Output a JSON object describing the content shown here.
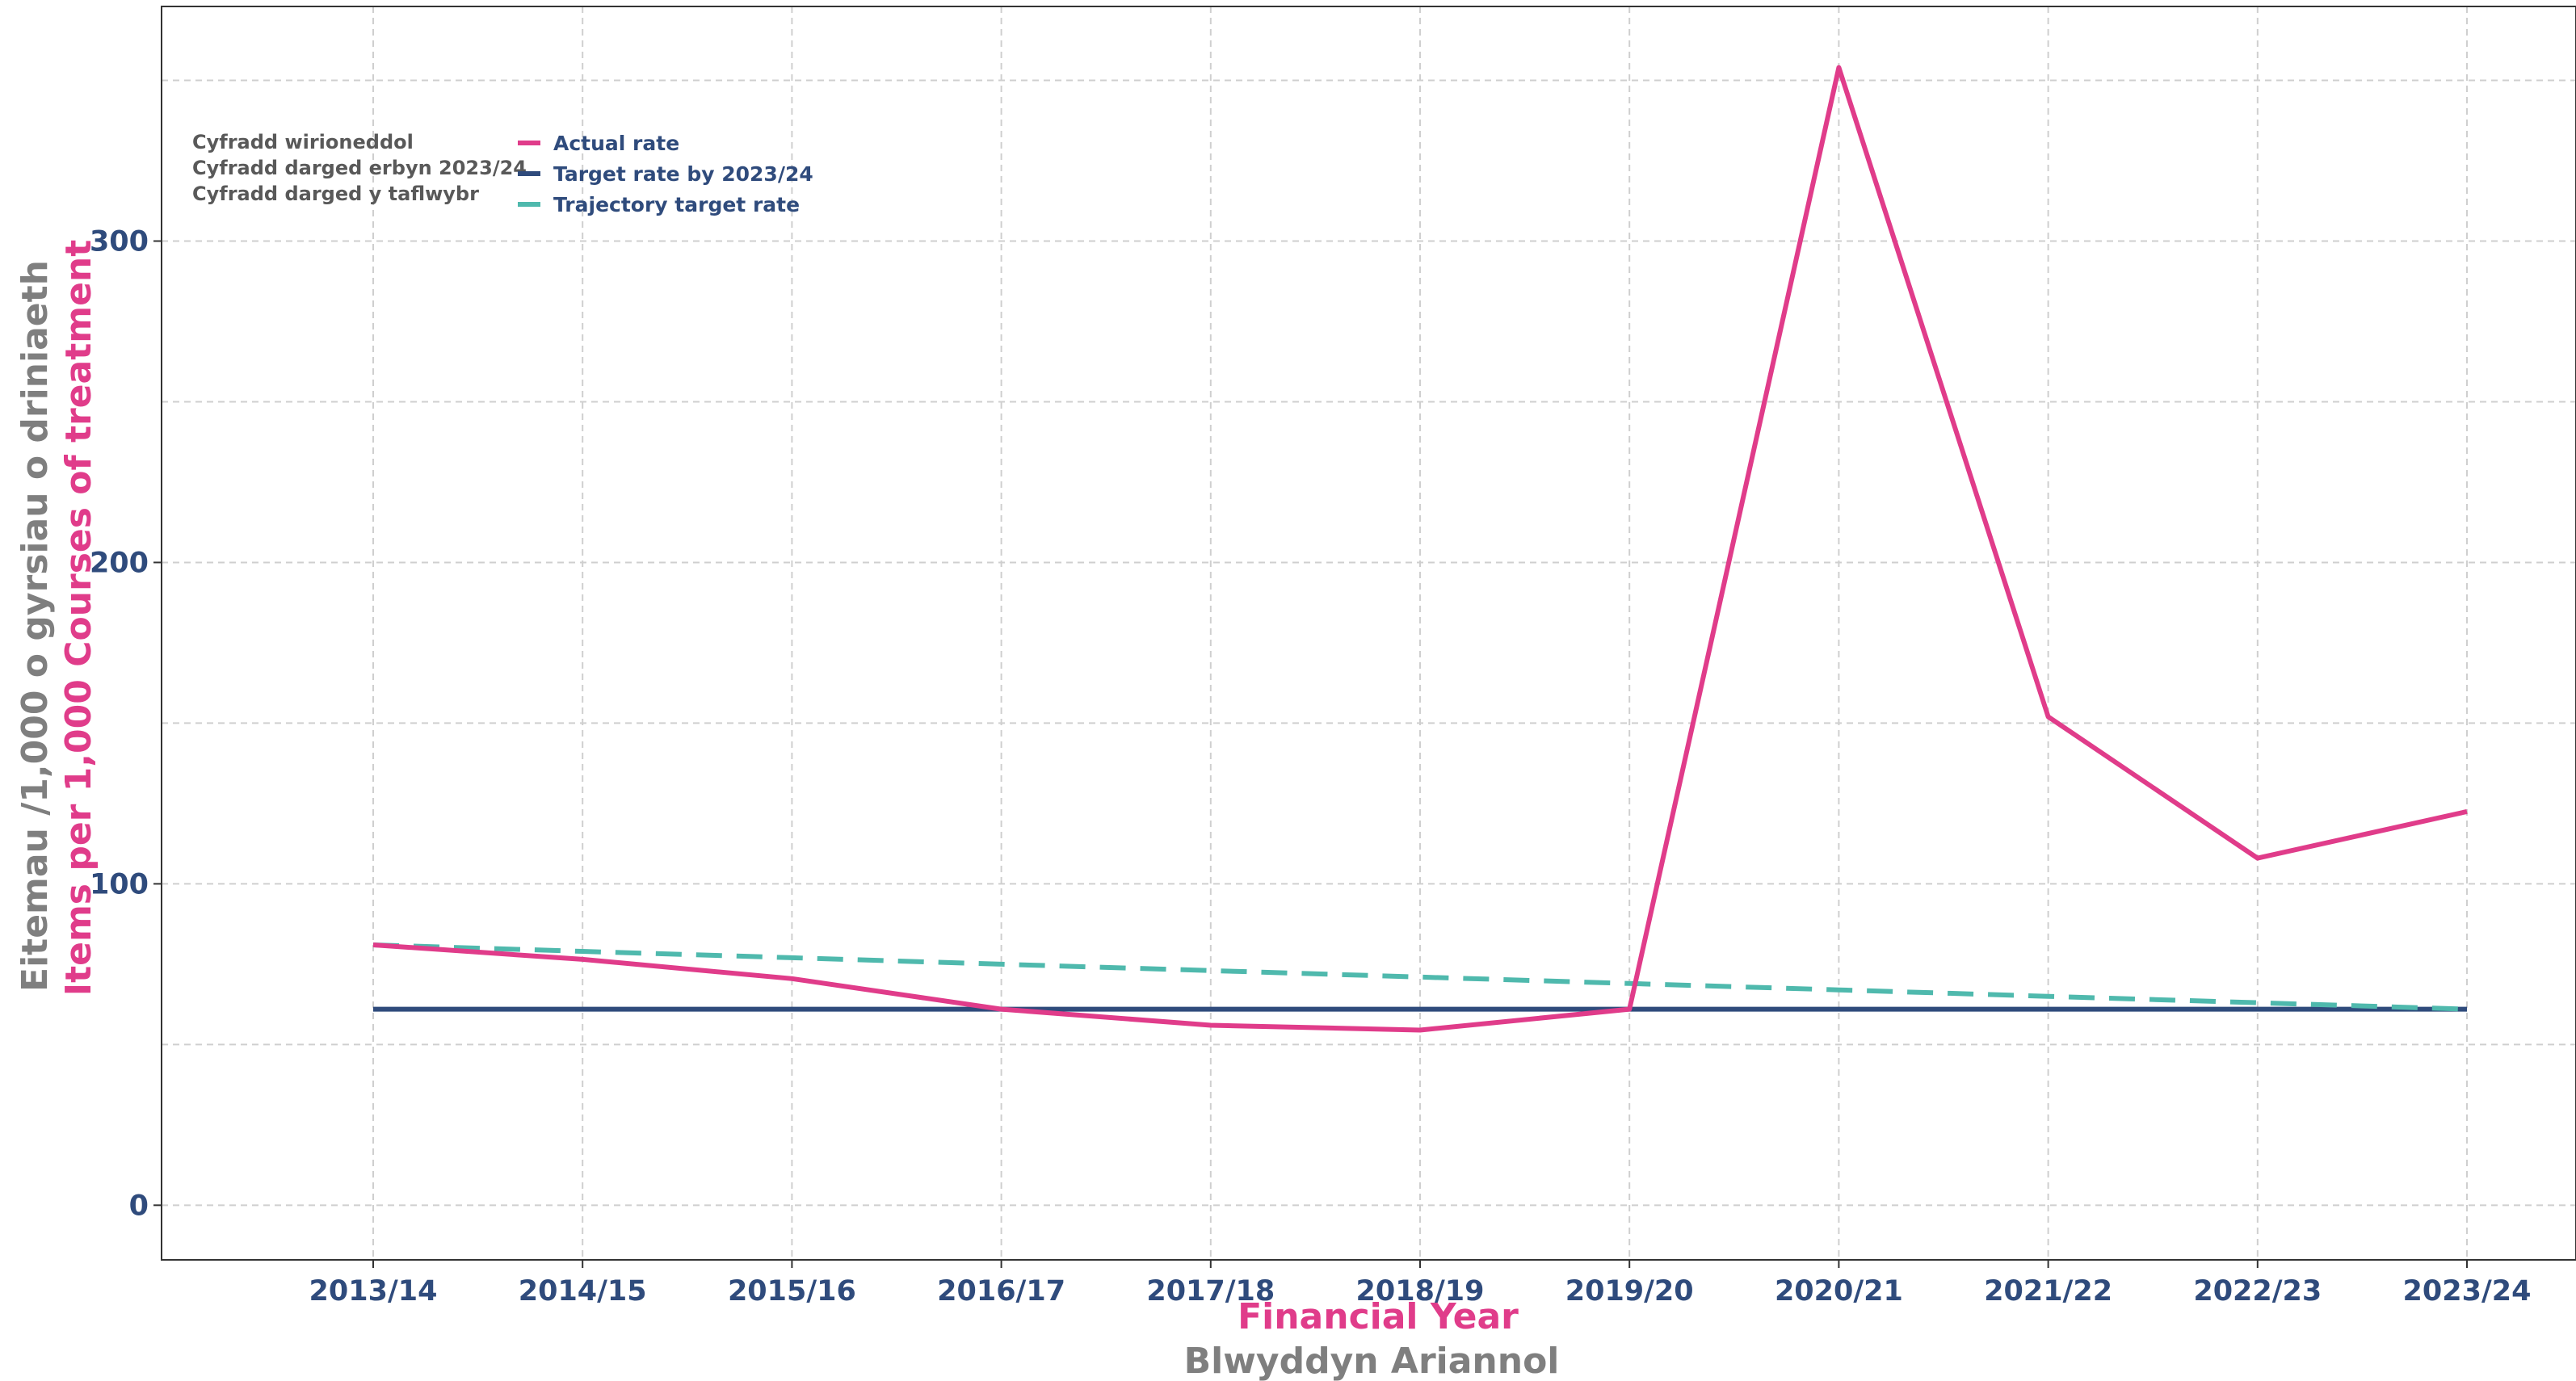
{
  "chart_data": {
    "type": "line",
    "categories": [
      "2013/14",
      "2014/15",
      "2015/16",
      "2016/17",
      "2017/18",
      "2018/19",
      "2019/20",
      "2020/21",
      "2021/22",
      "2022/23",
      "2023/24"
    ],
    "series": [
      {
        "name": "Actual rate",
        "color": "#e03c8a",
        "dash": "solid",
        "values": [
          81,
          76.5,
          70.5,
          61,
          56,
          54.5,
          61,
          354,
          152,
          108,
          122.5
        ]
      },
      {
        "name": "Target rate by 2023/24",
        "color": "#2f4b7c",
        "dash": "solid",
        "values": [
          61,
          61,
          61,
          61,
          61,
          61,
          61,
          61,
          61,
          61,
          61
        ]
      },
      {
        "name": "Trajectory target rate",
        "color": "#4fb9ad",
        "dash": "dashed",
        "values": [
          81,
          79,
          77,
          75,
          73,
          71,
          69,
          67,
          65,
          63,
          61
        ]
      }
    ],
    "legend_cy": [
      "Cyfradd wirioneddol",
      "Cyfradd darged erbyn 2023/24",
      "Cyfradd darged y taflwybr"
    ],
    "xlabel_en": "Financial Year",
    "xlabel_cy": "Blwyddyn Ariannol",
    "ylabel_en": "Items per 1,000 Courses of treatment",
    "ylabel_cy": "Eitemau /1,000 o gyrsiau o driniaeth",
    "yticks": [
      0,
      100,
      200,
      300
    ],
    "ylim": [
      -17,
      373
    ],
    "grid": true,
    "legend_position": "top-left"
  }
}
